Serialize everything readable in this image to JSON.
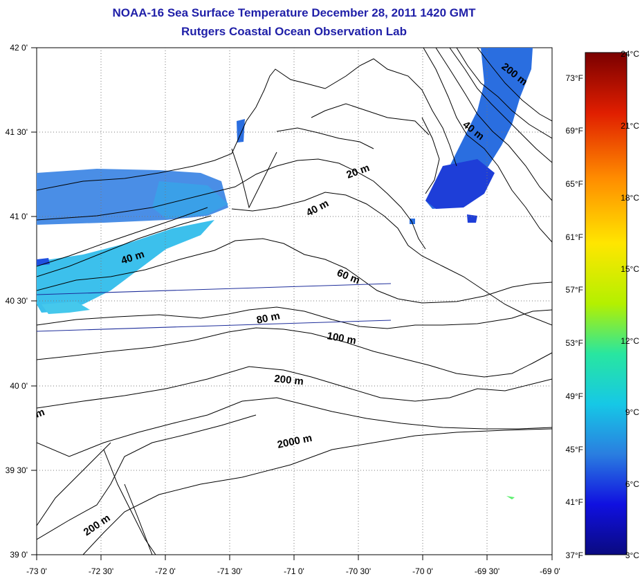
{
  "title_line1": "NOAA-16 Sea Surface Temperature December 28, 2011 1420 GMT",
  "title_line2": "Rutgers Coastal Ocean Observation Lab",
  "lat_labels": [
    "42 0'",
    "41 30'",
    "41 0'",
    "40 30'",
    "40 0'",
    "39 30'",
    "39 0'"
  ],
  "lon_labels": [
    "-73 0'",
    "-72 30'",
    "-72 0'",
    "-71 30'",
    "-71 0'",
    "-70 30'",
    "-70 0'",
    "-69 30'",
    "-69 0'"
  ],
  "depth_labels": [
    "20 m",
    "40 m",
    "40 m",
    "60 m",
    "80 m",
    "100 m",
    "200 m",
    "2000 m",
    "200 m",
    "200 m",
    "m",
    "40 m"
  ],
  "colorbar": {
    "celsius": [
      "24°C",
      "21°C",
      "18°C",
      "15°C",
      "12°C",
      "9°C",
      "6°C",
      "3°C"
    ],
    "fahrenheit": [
      "73°F",
      "69°F",
      "65°F",
      "61°F",
      "57°F",
      "53°F",
      "49°F",
      "45°F",
      "41°F",
      "37°F"
    ],
    "colors": [
      "#7a0000",
      "#e01e00",
      "#ff8c00",
      "#ffe600",
      "#b4f000",
      "#28e6a0",
      "#16c8e6",
      "#2a7ee0",
      "#1010e0",
      "#0a0a80"
    ]
  }
}
